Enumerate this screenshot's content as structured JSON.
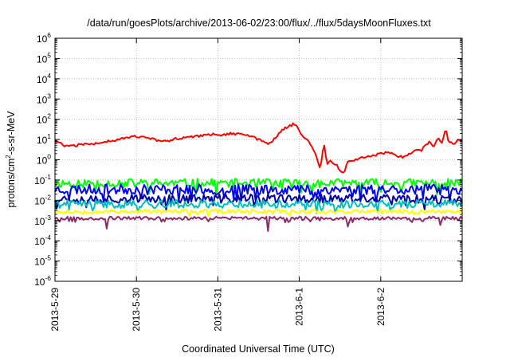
{
  "chart_data": {
    "type": "line",
    "title": "/data/run/goesPlots/archive/2013-06-02/23:00/flux/../flux/5daysMoonFluxes.txt",
    "xlabel": "Coordinated Universal Time (UTC)",
    "ylabel": "protons/cm2-s-sr-MeV",
    "ylabel_parts": [
      "protons/cm",
      "2",
      "-s-sr-MeV"
    ],
    "y_scale": "log",
    "ylim_exp": [
      -6,
      6
    ],
    "xlim_days": [
      0,
      5
    ],
    "grid": true,
    "x_ticks": [
      {
        "day": 0,
        "label": "2013-5-29"
      },
      {
        "day": 1,
        "label": "2013-5-30"
      },
      {
        "day": 2,
        "label": "2013-5-31"
      },
      {
        "day": 3,
        "label": "2013-6-1"
      },
      {
        "day": 4,
        "label": "2013-6-2"
      }
    ],
    "y_tick_exponents": [
      -6,
      -5,
      -4,
      -3,
      -2,
      -1,
      0,
      1,
      2,
      3,
      4,
      5,
      6
    ],
    "series": [
      {
        "color": "#ff0000",
        "width": 2,
        "base": 1.0,
        "noise": 0.12,
        "points": [
          [
            0,
            8
          ],
          [
            0.08,
            6
          ],
          [
            0.15,
            4.5
          ],
          [
            0.25,
            5
          ],
          [
            0.35,
            6
          ],
          [
            0.45,
            5.5
          ],
          [
            0.55,
            7
          ],
          [
            0.7,
            9
          ],
          [
            0.85,
            12
          ],
          [
            1.0,
            14
          ],
          [
            1.15,
            12
          ],
          [
            1.25,
            9
          ],
          [
            1.35,
            8
          ],
          [
            1.5,
            11
          ],
          [
            1.7,
            14
          ],
          [
            1.9,
            18
          ],
          [
            2.05,
            17
          ],
          [
            2.15,
            20
          ],
          [
            2.3,
            18
          ],
          [
            2.45,
            12
          ],
          [
            2.55,
            9
          ],
          [
            2.62,
            6
          ],
          [
            2.7,
            12
          ],
          [
            2.75,
            20
          ],
          [
            2.8,
            30
          ],
          [
            2.85,
            40
          ],
          [
            2.9,
            50
          ],
          [
            2.93,
            65
          ],
          [
            2.97,
            45
          ],
          [
            3.0,
            25
          ],
          [
            3.05,
            15
          ],
          [
            3.12,
            7
          ],
          [
            3.18,
            2.5
          ],
          [
            3.22,
            1.2
          ],
          [
            3.26,
            0.3
          ],
          [
            3.3,
            8
          ],
          [
            3.34,
            0.5
          ],
          [
            3.38,
            0.9
          ],
          [
            3.45,
            0.6
          ],
          [
            3.5,
            0.3
          ],
          [
            3.55,
            0.25
          ],
          [
            3.6,
            0.8
          ],
          [
            3.7,
            1.1
          ],
          [
            3.8,
            1.3
          ],
          [
            3.9,
            1.6
          ],
          [
            4.0,
            2
          ],
          [
            4.1,
            2.5
          ],
          [
            4.2,
            1.5
          ],
          [
            4.3,
            1.4
          ],
          [
            4.4,
            2.5
          ],
          [
            4.5,
            3
          ],
          [
            4.6,
            8
          ],
          [
            4.65,
            4
          ],
          [
            4.7,
            12
          ],
          [
            4.75,
            6
          ],
          [
            4.8,
            40
          ],
          [
            4.83,
            8
          ],
          [
            4.9,
            6
          ],
          [
            4.95,
            10
          ],
          [
            5.0,
            9
          ]
        ]
      },
      {
        "color": "#00ff00",
        "width": 2,
        "base": 0.07,
        "noise": 0.22,
        "seed": 11
      },
      {
        "color": "#0000ff",
        "width": 2,
        "base": 0.035,
        "noise": 0.25,
        "seed": 23
      },
      {
        "color": "#0000a0",
        "width": 2,
        "base": 0.012,
        "noise": 0.22,
        "seed": 37
      },
      {
        "color": "#00bcbc",
        "width": 2,
        "base": 0.0065,
        "noise": 0.2,
        "seed": 41
      },
      {
        "color": "#ffff00",
        "width": 2,
        "base": 0.0028,
        "noise": 0.1,
        "seed": 53
      },
      {
        "color": "#8b2b6b",
        "width": 2,
        "base": 0.0013,
        "noise": 0.08,
        "seed": 67,
        "dips": [
          [
            0.63,
            0.0004
          ],
          [
            2.62,
            0.0003
          ],
          [
            3.6,
            0.0005
          ],
          [
            4.73,
            0.0006
          ]
        ]
      }
    ]
  }
}
